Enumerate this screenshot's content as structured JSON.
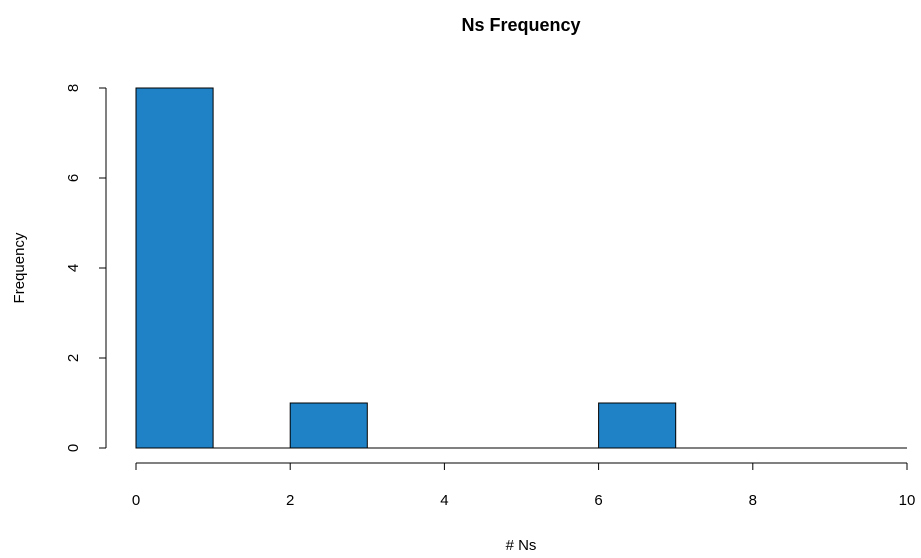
{
  "chart_data": {
    "type": "bar",
    "title": "Ns Frequency",
    "xlabel": "# Ns",
    "ylabel": "Frequency",
    "bins": [
      {
        "start": 0,
        "end": 1,
        "count": 8
      },
      {
        "start": 1,
        "end": 2,
        "count": 0
      },
      {
        "start": 2,
        "end": 3,
        "count": 1
      },
      {
        "start": 3,
        "end": 4,
        "count": 0
      },
      {
        "start": 4,
        "end": 5,
        "count": 0
      },
      {
        "start": 5,
        "end": 6,
        "count": 0
      },
      {
        "start": 6,
        "end": 7,
        "count": 1
      },
      {
        "start": 7,
        "end": 8,
        "count": 0
      },
      {
        "start": 8,
        "end": 9,
        "count": 0
      },
      {
        "start": 9,
        "end": 10,
        "count": 0
      }
    ],
    "xlim": [
      0,
      10
    ],
    "ylim": [
      0,
      8
    ],
    "xticks": [
      "0",
      "2",
      "4",
      "6",
      "8",
      "10"
    ],
    "yticks": [
      "0",
      "2",
      "4",
      "6",
      "8"
    ],
    "grid": false,
    "legend": "none",
    "colors": {
      "bar_fill": "#1f82c6",
      "bar_border": "#000000"
    }
  }
}
